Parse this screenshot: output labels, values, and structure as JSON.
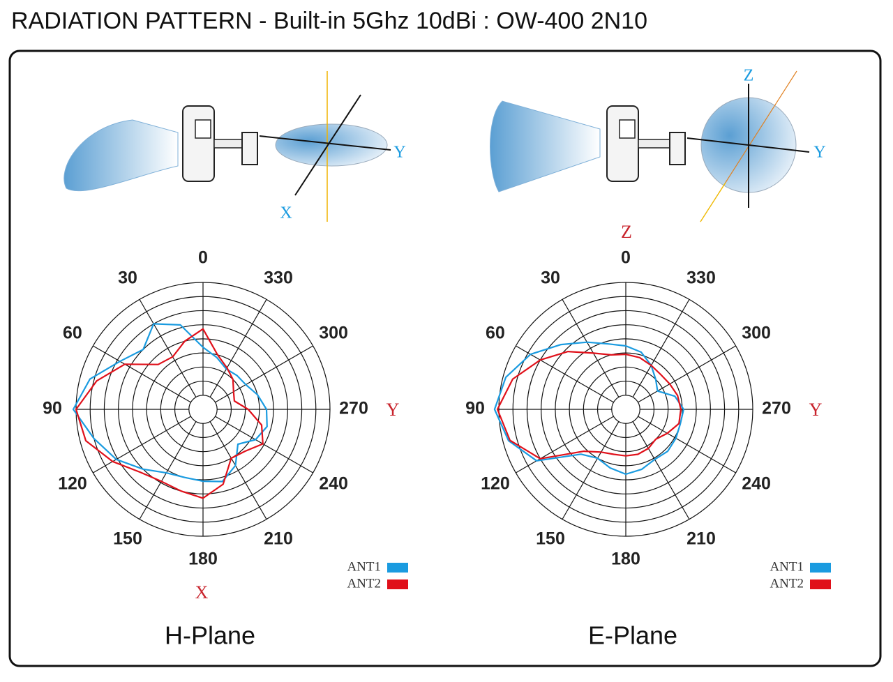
{
  "title": "RADIATION PATTERN - Built-in 5Ghz 10dBi : OW-400 2N10",
  "illustrations": [
    {
      "labels": [
        "Y",
        "X"
      ]
    },
    {
      "labels": [
        "Z",
        "Y"
      ]
    }
  ],
  "chart_data": [
    {
      "type": "polar",
      "title": "H-Plane",
      "theta": [
        0,
        15,
        30,
        45,
        60,
        75,
        90,
        105,
        120,
        135,
        150,
        165,
        180,
        195,
        210,
        225,
        240,
        255,
        270,
        285,
        300,
        315,
        330,
        345
      ],
      "thetaticks": [
        0,
        30,
        60,
        90,
        120,
        150,
        180,
        210,
        240,
        270,
        300,
        330
      ],
      "rlim": [
        0,
        9
      ],
      "rticks": [
        1,
        2,
        3,
        4,
        5,
        6,
        7,
        8,
        9
      ],
      "direction": "counterclockwise",
      "zero": "top",
      "axis_labels": {
        "right": "Y",
        "bottom": "X"
      },
      "legend": "lower right",
      "series": [
        {
          "name": "ANT1",
          "color": "#1a9be0",
          "values": [
            4.4,
            6.2,
            7.0,
            6.0,
            6.8,
            8.3,
            9.2,
            8.0,
            7.1,
            6.0,
            5.2,
            5.0,
            5.1,
            5.3,
            4.6,
            3.5,
            4.3,
            4.7,
            4.5,
            4.0,
            3.5,
            3.4,
            3.3,
            3.8
          ]
        },
        {
          "name": "ANT2",
          "color": "#e0101a",
          "values": [
            5.7,
            5.0,
            4.3,
            4.5,
            6.4,
            7.8,
            9.0,
            8.6,
            7.4,
            6.3,
            5.9,
            6.0,
            6.3,
            5.5,
            4.0,
            4.2,
            4.9,
            4.3,
            3.2,
            2.3,
            2.5,
            3.0,
            3.4,
            4.0
          ]
        }
      ]
    },
    {
      "type": "polar",
      "title": "E-Plane",
      "theta": [
        0,
        15,
        30,
        45,
        60,
        75,
        90,
        105,
        120,
        135,
        150,
        165,
        180,
        195,
        210,
        225,
        240,
        255,
        270,
        285,
        300,
        315,
        330,
        345
      ],
      "thetaticks": [
        0,
        30,
        60,
        90,
        120,
        150,
        180,
        210,
        240,
        270,
        300,
        330
      ],
      "rlim": [
        0,
        9
      ],
      "rticks": [
        1,
        2,
        3,
        4,
        5,
        6,
        7,
        8,
        9
      ],
      "direction": "counterclockwise",
      "zero": "top",
      "axis_labels": {
        "top": "Z",
        "right": "Y"
      },
      "legend": "lower right",
      "series": [
        {
          "name": "ANT1",
          "color": "#1a9be0",
          "values": [
            4.5,
            4.8,
            5.5,
            6.5,
            7.8,
            8.8,
            9.3,
            8.6,
            7.3,
            4.5,
            4.0,
            4.3,
            4.6,
            4.4,
            4.1,
            4.2,
            4.1,
            4.0,
            4.1,
            3.6,
            2.6,
            3.0,
            3.6,
            4.2
          ]
        },
        {
          "name": "ANT2",
          "color": "#e0101a",
          "values": [
            3.9,
            4.0,
            4.6,
            5.8,
            7.0,
            8.3,
            9.1,
            8.5,
            7.0,
            4.2,
            3.5,
            3.3,
            3.3,
            3.3,
            3.2,
            3.0,
            3.4,
            3.9,
            3.9,
            3.8,
            3.6,
            3.5,
            3.6,
            3.8
          ]
        }
      ]
    }
  ]
}
